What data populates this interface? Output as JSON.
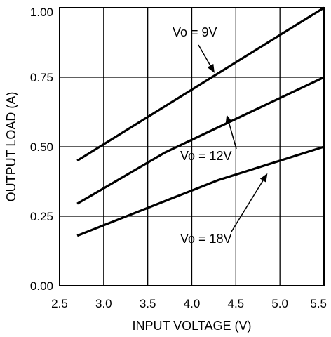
{
  "chart_data": {
    "type": "line",
    "title": "",
    "xlabel": "INPUT VOLTAGE (V)",
    "ylabel": "OUTPUT LOAD (A)",
    "xlim": [
      2.5,
      5.5
    ],
    "ylim": [
      0.0,
      1.0
    ],
    "grid": true,
    "x_ticks": [
      2.5,
      3.0,
      3.5,
      4.0,
      4.5,
      5.0,
      5.5
    ],
    "x_tick_labels": [
      "2.5",
      "3.0",
      "3.5",
      "4.0",
      "4.5",
      "5.0",
      "5.5"
    ],
    "y_ticks": [
      0.0,
      0.25,
      0.5,
      0.75,
      1.0
    ],
    "y_tick_labels": [
      "0.00",
      "0.25",
      "0.50",
      "0.75",
      "1.00"
    ],
    "series": [
      {
        "name": "Vo = 9V",
        "x": [
          2.7,
          5.5
        ],
        "y": [
          0.45,
          1.0
        ]
      },
      {
        "name": "Vo = 12V",
        "x": [
          2.7,
          3.7,
          5.5
        ],
        "y": [
          0.295,
          0.48,
          0.75
        ]
      },
      {
        "name": "Vo = 18V",
        "x": [
          2.7,
          4.3,
          5.5
        ],
        "y": [
          0.18,
          0.38,
          0.5
        ]
      }
    ],
    "annotations": [
      {
        "text": "Vo = 9V",
        "points_to": [
          4.25,
          0.77
        ]
      },
      {
        "text": "Vo = 12V",
        "points_to": [
          4.4,
          0.61
        ]
      },
      {
        "text": "Vo = 18V",
        "points_to": [
          4.85,
          0.4
        ]
      }
    ]
  }
}
